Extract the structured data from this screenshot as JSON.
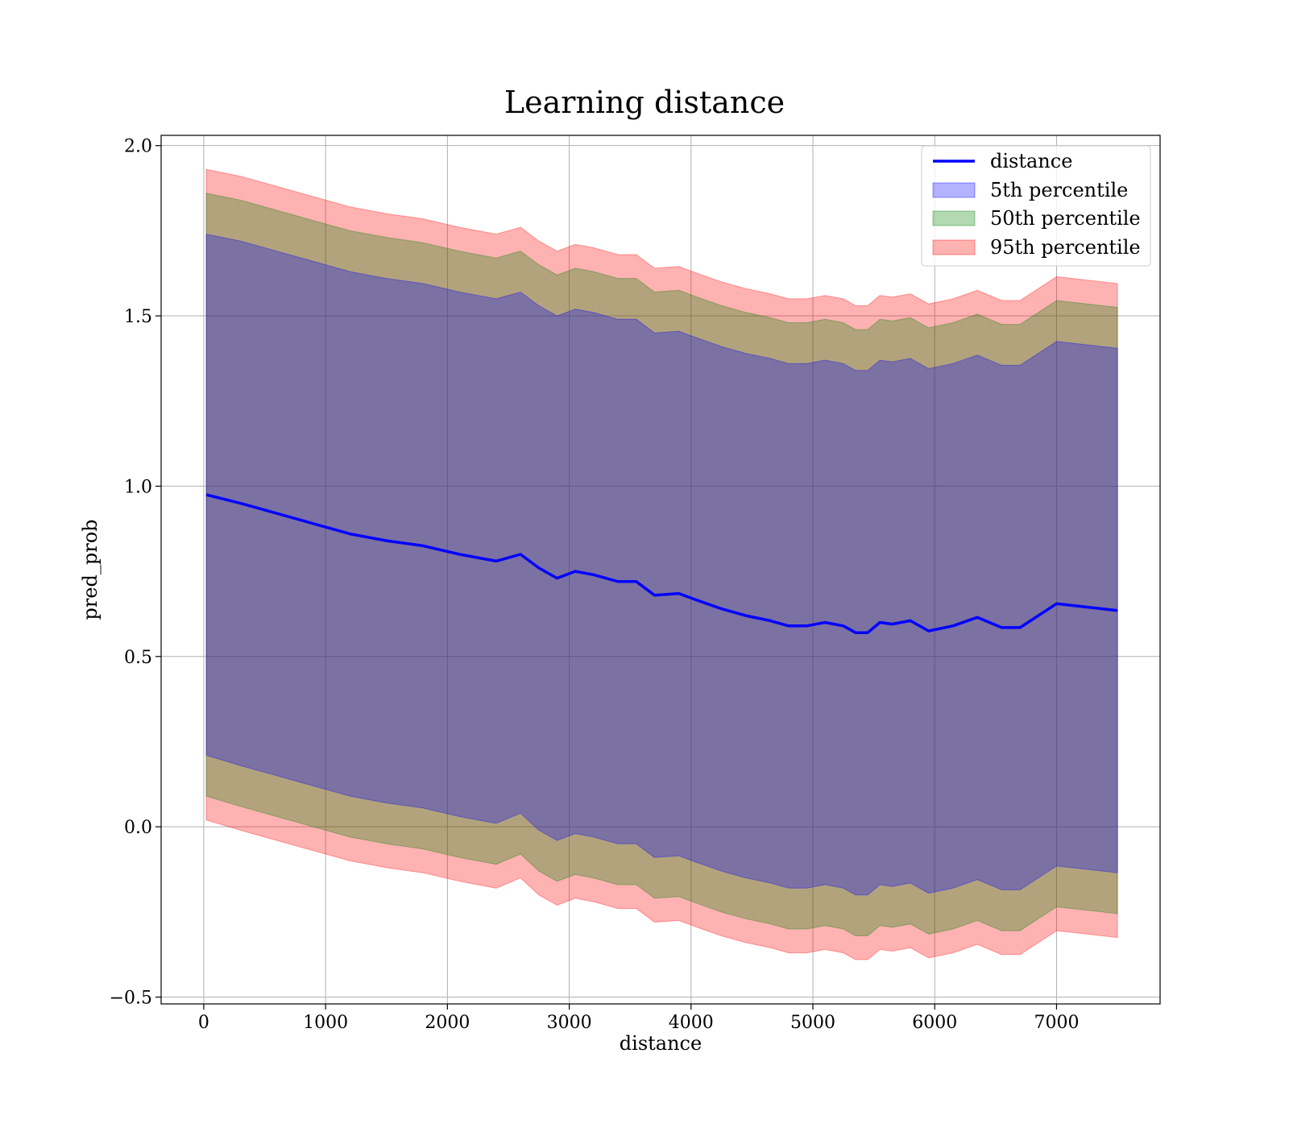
{
  "chart_data": {
    "type": "line",
    "title": "Learning distance",
    "xlabel": "distance",
    "ylabel": "pred_prob",
    "xlim": [
      -350,
      7850
    ],
    "ylim": [
      -0.52,
      2.03
    ],
    "grid": true,
    "legend_position": "top-right",
    "x_ticks": [
      0,
      1000,
      2000,
      3000,
      4000,
      5000,
      6000,
      7000
    ],
    "x_tick_labels": [
      "0",
      "1000",
      "2000",
      "3000",
      "4000",
      "5000",
      "6000",
      "7000"
    ],
    "y_ticks": [
      -0.5,
      0.0,
      0.5,
      1.0,
      1.5,
      2.0
    ],
    "y_tick_labels": [
      "−0.5",
      "0.0",
      "0.5",
      "1.0",
      "1.5",
      "2.0"
    ],
    "x": [
      20,
      300,
      600,
      900,
      1200,
      1500,
      1800,
      2100,
      2400,
      2600,
      2750,
      2900,
      3050,
      3200,
      3400,
      3550,
      3700,
      3900,
      4050,
      4250,
      4450,
      4650,
      4800,
      4950,
      5100,
      5250,
      5350,
      5450,
      5550,
      5650,
      5800,
      5950,
      6150,
      6350,
      6550,
      6700,
      7000,
      7500
    ],
    "series": [
      {
        "name": "distance",
        "kind": "line",
        "color": "#0000ff",
        "values": [
          0.975,
          0.95,
          0.92,
          0.89,
          0.86,
          0.84,
          0.825,
          0.8,
          0.78,
          0.8,
          0.76,
          0.73,
          0.75,
          0.74,
          0.72,
          0.72,
          0.68,
          0.685,
          0.665,
          0.64,
          0.62,
          0.605,
          0.59,
          0.59,
          0.6,
          0.59,
          0.57,
          0.57,
          0.6,
          0.595,
          0.605,
          0.575,
          0.59,
          0.615,
          0.585,
          0.585,
          0.655,
          0.635
        ]
      },
      {
        "name": "5th percentile",
        "kind": "band",
        "color": "#0000ff",
        "lower": [
          0.21,
          0.18,
          0.15,
          0.12,
          0.09,
          0.07,
          0.055,
          0.03,
          0.01,
          0.04,
          -0.01,
          -0.04,
          -0.02,
          -0.03,
          -0.05,
          -0.05,
          -0.09,
          -0.085,
          -0.105,
          -0.13,
          -0.15,
          -0.165,
          -0.18,
          -0.18,
          -0.17,
          -0.18,
          -0.2,
          -0.2,
          -0.17,
          -0.175,
          -0.165,
          -0.195,
          -0.18,
          -0.155,
          -0.185,
          -0.185,
          -0.115,
          -0.135
        ],
        "upper": [
          1.74,
          1.72,
          1.69,
          1.66,
          1.63,
          1.61,
          1.595,
          1.57,
          1.55,
          1.57,
          1.53,
          1.5,
          1.52,
          1.51,
          1.49,
          1.49,
          1.45,
          1.455,
          1.435,
          1.41,
          1.39,
          1.375,
          1.36,
          1.36,
          1.37,
          1.36,
          1.34,
          1.34,
          1.37,
          1.365,
          1.375,
          1.345,
          1.36,
          1.385,
          1.355,
          1.355,
          1.425,
          1.405
        ]
      },
      {
        "name": "50th percentile",
        "kind": "band",
        "color": "#008000",
        "lower": [
          0.09,
          0.06,
          0.03,
          0.0,
          -0.03,
          -0.05,
          -0.065,
          -0.09,
          -0.11,
          -0.08,
          -0.13,
          -0.16,
          -0.14,
          -0.15,
          -0.17,
          -0.17,
          -0.21,
          -0.205,
          -0.225,
          -0.25,
          -0.27,
          -0.285,
          -0.3,
          -0.3,
          -0.29,
          -0.3,
          -0.32,
          -0.32,
          -0.29,
          -0.295,
          -0.285,
          -0.315,
          -0.3,
          -0.275,
          -0.305,
          -0.305,
          -0.235,
          -0.255
        ],
        "upper": [
          1.86,
          1.84,
          1.81,
          1.78,
          1.75,
          1.73,
          1.715,
          1.69,
          1.67,
          1.69,
          1.65,
          1.62,
          1.64,
          1.63,
          1.61,
          1.61,
          1.57,
          1.575,
          1.555,
          1.53,
          1.51,
          1.495,
          1.48,
          1.48,
          1.49,
          1.48,
          1.46,
          1.46,
          1.49,
          1.485,
          1.495,
          1.465,
          1.48,
          1.505,
          1.475,
          1.475,
          1.545,
          1.525
        ]
      },
      {
        "name": "95th percentile",
        "kind": "band",
        "color": "#ff0000",
        "lower": [
          0.02,
          -0.01,
          -0.04,
          -0.07,
          -0.1,
          -0.12,
          -0.135,
          -0.16,
          -0.18,
          -0.15,
          -0.2,
          -0.23,
          -0.21,
          -0.22,
          -0.24,
          -0.24,
          -0.28,
          -0.275,
          -0.295,
          -0.32,
          -0.34,
          -0.355,
          -0.37,
          -0.37,
          -0.36,
          -0.37,
          -0.39,
          -0.39,
          -0.36,
          -0.365,
          -0.355,
          -0.385,
          -0.37,
          -0.345,
          -0.375,
          -0.375,
          -0.305,
          -0.325
        ],
        "upper": [
          1.93,
          1.91,
          1.88,
          1.85,
          1.82,
          1.8,
          1.785,
          1.76,
          1.74,
          1.76,
          1.72,
          1.69,
          1.71,
          1.7,
          1.68,
          1.68,
          1.64,
          1.645,
          1.625,
          1.6,
          1.58,
          1.565,
          1.55,
          1.55,
          1.56,
          1.55,
          1.53,
          1.53,
          1.56,
          1.555,
          1.565,
          1.535,
          1.55,
          1.575,
          1.545,
          1.545,
          1.615,
          1.595
        ]
      }
    ]
  }
}
